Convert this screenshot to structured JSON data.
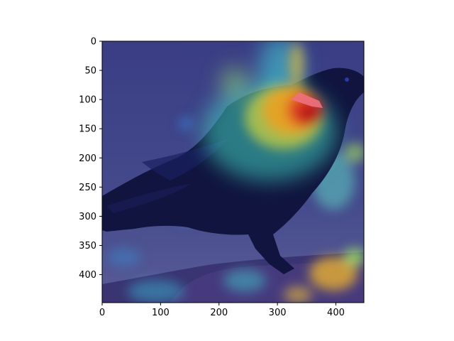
{
  "figure": {
    "image_subject": "crow perched on grass with Grad-CAM style heatmap overlay",
    "heatmap_colormap": "jet",
    "x_axis": {
      "range": [
        0,
        448
      ],
      "ticks": [
        {
          "value": 0,
          "label": "0"
        },
        {
          "value": 100,
          "label": "100"
        },
        {
          "value": 200,
          "label": "200"
        },
        {
          "value": 300,
          "label": "300"
        },
        {
          "value": 400,
          "label": "400"
        }
      ]
    },
    "y_axis": {
      "range": [
        0,
        448
      ],
      "inverted": true,
      "ticks": [
        {
          "value": 0,
          "label": "0"
        },
        {
          "value": 50,
          "label": "50"
        },
        {
          "value": 100,
          "label": "100"
        },
        {
          "value": 150,
          "label": "150"
        },
        {
          "value": 200,
          "label": "200"
        },
        {
          "value": 250,
          "label": "250"
        },
        {
          "value": 300,
          "label": "300"
        },
        {
          "value": 350,
          "label": "350"
        },
        {
          "value": 400,
          "label": "400"
        }
      ]
    },
    "colors": {
      "background_cool": "#3b3f86",
      "crow": "#0c0f3a",
      "hot": "#e0202a",
      "warm": "#f0a020",
      "mid": "#4fd0c0"
    }
  }
}
